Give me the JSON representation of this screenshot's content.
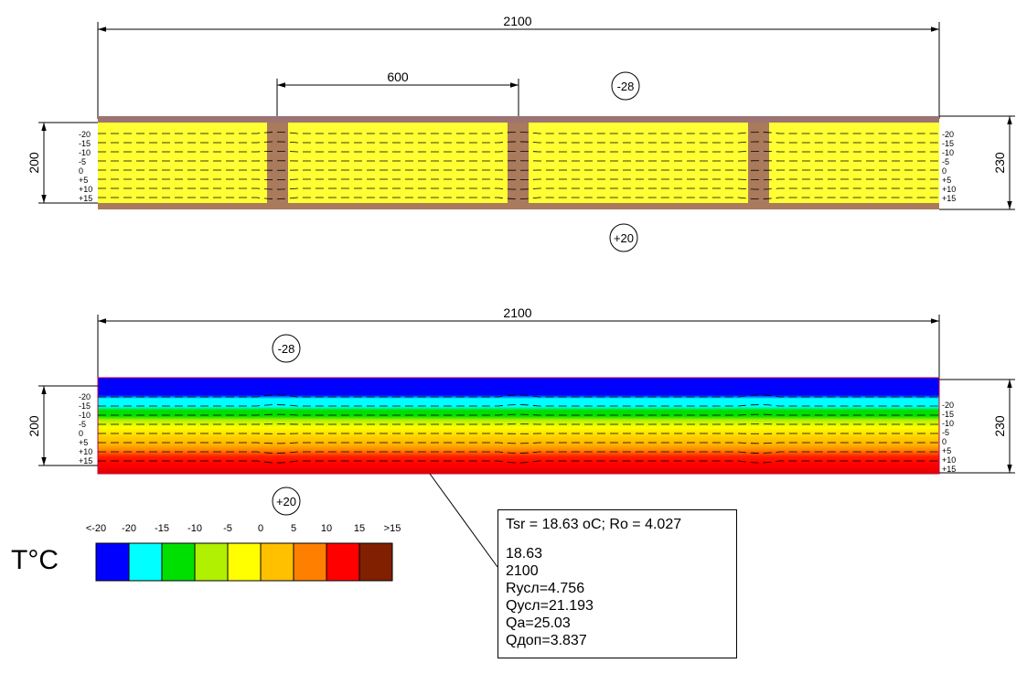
{
  "dimensions": {
    "total_length": "2100",
    "rib_spacing": "600",
    "panel_height": "200",
    "total_height": "230"
  },
  "temperatures": {
    "outside": "-28",
    "inside": "+20"
  },
  "isotherm_labels": [
    "-20",
    "-15",
    "-10",
    "-5",
    "0",
    "+5",
    "+10",
    "+15"
  ],
  "legend": {
    "unit_label": "T°C",
    "tick_labels": [
      "<-20",
      "-20",
      "-15",
      "-10",
      "-5",
      "0",
      "5",
      "10",
      "15",
      ">15"
    ],
    "swatches": [
      {
        "name": "lt-minus-20",
        "color": "#0000ff"
      },
      {
        "name": "minus-20",
        "color": "#00ffff"
      },
      {
        "name": "minus-15",
        "color": "#00e000"
      },
      {
        "name": "minus-10",
        "color": "#b0f000"
      },
      {
        "name": "minus-5",
        "color": "#ffff00"
      },
      {
        "name": "zero",
        "color": "#ffc000"
      },
      {
        "name": "plus-5",
        "color": "#ff8000"
      },
      {
        "name": "plus-10",
        "color": "#ff0000"
      },
      {
        "name": "plus-15",
        "color": "#802000"
      }
    ]
  },
  "materials": {
    "insulation_color": "#ffff33",
    "wood_color": "#a97a5c",
    "sheathing_top_color": "#9c7474"
  },
  "results": {
    "header": "Tsr = 18.63 oC; Ro = 4.027",
    "lines": [
      "18.63",
      "2100",
      "Rусл=4.756",
      "Qусл=21.193",
      "Qa=25.03",
      "Qдоп=3.837"
    ]
  }
}
